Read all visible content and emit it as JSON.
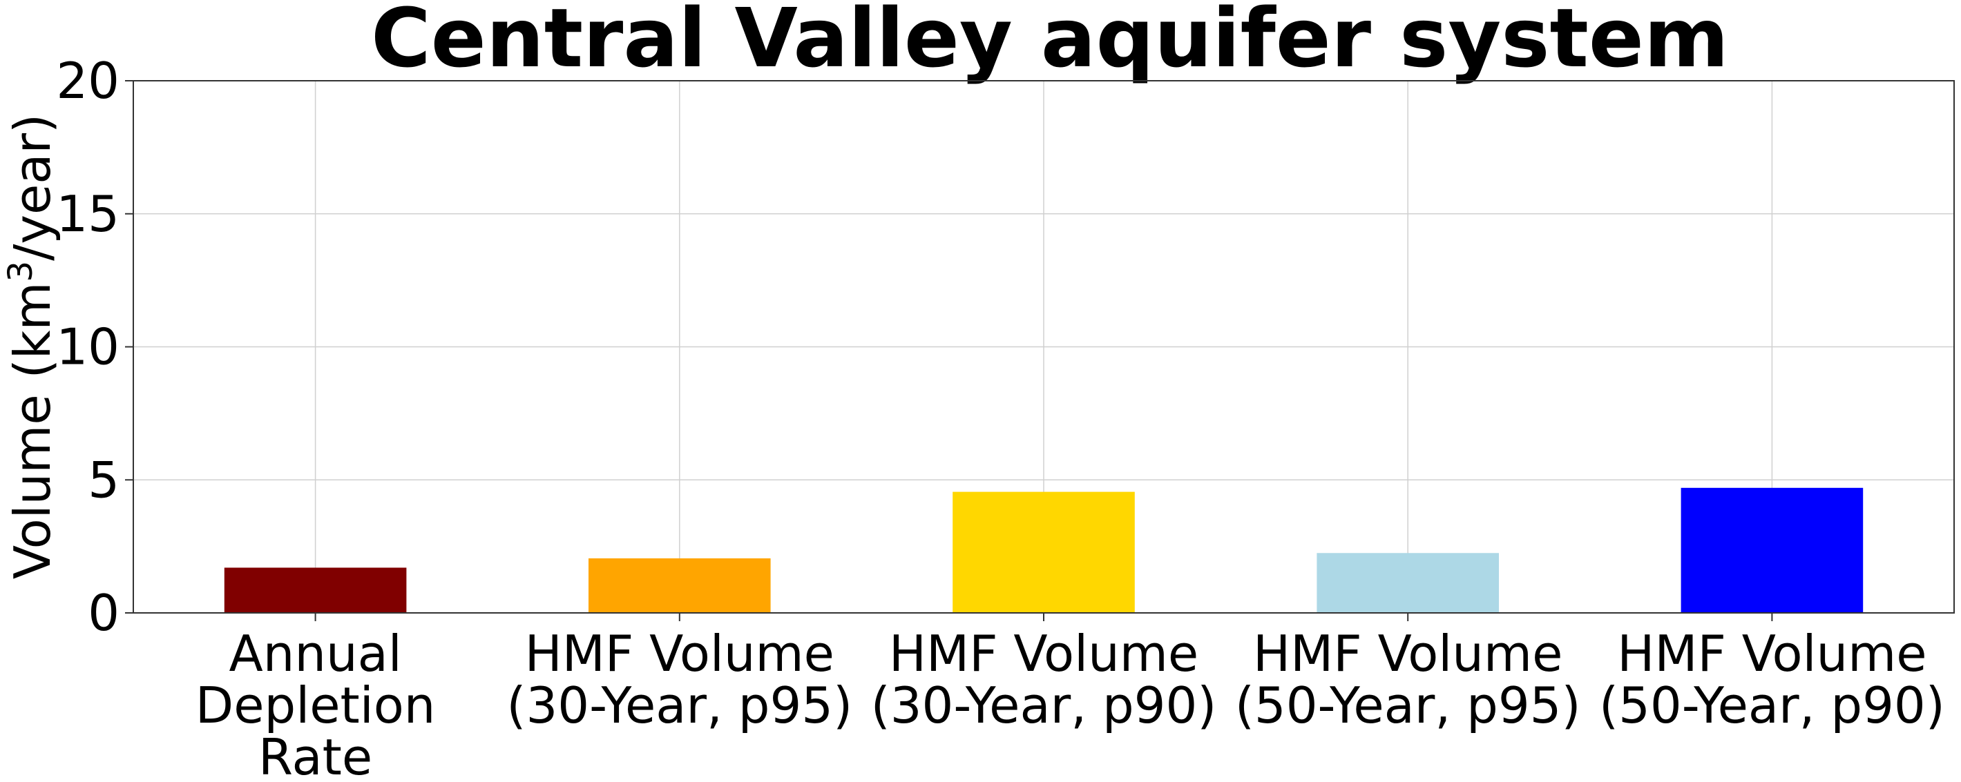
{
  "chart_data": {
    "type": "bar",
    "title": "Central Valley aquifer system",
    "ylabel_main": "Volume (km",
    "ylabel_sup": "3",
    "ylabel_tail": "/year)",
    "xlabel": "",
    "ylim": [
      0,
      20
    ],
    "yticks": [
      0,
      5,
      10,
      15,
      20
    ],
    "grid": true,
    "categories": [
      [
        "Annual",
        "Depletion",
        "Rate"
      ],
      [
        "HMF Volume",
        "(30-Year, p95)"
      ],
      [
        "HMF Volume",
        "(30-Year, p90)"
      ],
      [
        "HMF Volume",
        "(50-Year, p95)"
      ],
      [
        "HMF Volume",
        "(50-Year, p90)"
      ]
    ],
    "values": [
      1.7,
      2.05,
      4.55,
      2.25,
      4.7
    ],
    "colors": [
      "#800000",
      "#ffa500",
      "#ffd700",
      "#add8e6",
      "#0000ff"
    ]
  }
}
